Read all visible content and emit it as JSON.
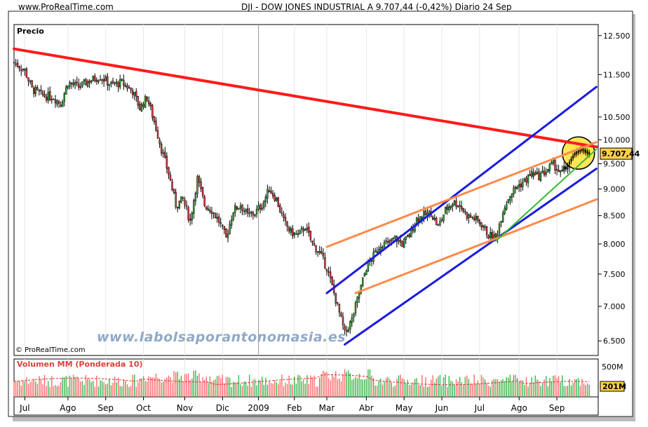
{
  "header": {
    "brand": "www.ProRealTime.com",
    "symbol_title": "DJI - DOW JONES INDUSTRIAL A   9.707,44 (-0,42%)   Diario  24 Sep"
  },
  "watermark": "www.labolsaporantonomasia.es",
  "copyright": "© ProRealTime.com",
  "colors": {
    "trend_red": "#ff1a1a",
    "channel_blue": "#1a1adf",
    "channel_orange": "#ff8a4a",
    "support_green": "#33bb33",
    "highlight_yellow": "#ffe23a",
    "candle_up": "#2fae2f",
    "candle_down": "#e03a3a",
    "volume_up": "#3ab54a",
    "volume_down": "#ff6a6a",
    "volume_ma": "#d03030"
  },
  "chart_data": {
    "type": "candlestick",
    "price_panel": {
      "label": "Precio",
      "y_ticks": [
        "12.500",
        "11.500",
        "10.500",
        "10.000",
        "9.500",
        "9.000",
        "8.500",
        "8.000",
        "7.500",
        "7.000",
        "6.500"
      ],
      "y_tick_values": [
        12500,
        11500,
        10500,
        10000,
        9500,
        9000,
        8500,
        8000,
        7500,
        7000,
        6500
      ],
      "y_scale": "log",
      "ylim": [
        6300,
        12800
      ],
      "last_value_label": "9.707,44",
      "last_value": 9707.44,
      "x_index_range": [
        0,
        320
      ],
      "close_series": [
        {
          "x": 0,
          "y": 11800
        },
        {
          "x": 6,
          "y": 11600
        },
        {
          "x": 10,
          "y": 11150
        },
        {
          "x": 16,
          "y": 11000
        },
        {
          "x": 22,
          "y": 10950
        },
        {
          "x": 26,
          "y": 10800
        },
        {
          "x": 30,
          "y": 11300
        },
        {
          "x": 36,
          "y": 11200
        },
        {
          "x": 42,
          "y": 11350
        },
        {
          "x": 48,
          "y": 11450
        },
        {
          "x": 54,
          "y": 11250
        },
        {
          "x": 60,
          "y": 11300
        },
        {
          "x": 66,
          "y": 11100
        },
        {
          "x": 70,
          "y": 10700
        },
        {
          "x": 74,
          "y": 10950
        },
        {
          "x": 78,
          "y": 10400
        },
        {
          "x": 82,
          "y": 9800
        },
        {
          "x": 86,
          "y": 9300
        },
        {
          "x": 90,
          "y": 8700
        },
        {
          "x": 94,
          "y": 8800
        },
        {
          "x": 98,
          "y": 8400
        },
        {
          "x": 102,
          "y": 9200
        },
        {
          "x": 106,
          "y": 8700
        },
        {
          "x": 110,
          "y": 8600
        },
        {
          "x": 114,
          "y": 8400
        },
        {
          "x": 118,
          "y": 8100
        },
        {
          "x": 122,
          "y": 8600
        },
        {
          "x": 126,
          "y": 8700
        },
        {
          "x": 130,
          "y": 8500
        },
        {
          "x": 134,
          "y": 8550
        },
        {
          "x": 138,
          "y": 8700
        },
        {
          "x": 142,
          "y": 9000
        },
        {
          "x": 146,
          "y": 8800
        },
        {
          "x": 150,
          "y": 8400
        },
        {
          "x": 154,
          "y": 8200
        },
        {
          "x": 158,
          "y": 8150
        },
        {
          "x": 162,
          "y": 8300
        },
        {
          "x": 166,
          "y": 8000
        },
        {
          "x": 170,
          "y": 7850
        },
        {
          "x": 174,
          "y": 7600
        },
        {
          "x": 178,
          "y": 7200
        },
        {
          "x": 182,
          "y": 6800
        },
        {
          "x": 184,
          "y": 6600
        },
        {
          "x": 188,
          "y": 6800
        },
        {
          "x": 192,
          "y": 7200
        },
        {
          "x": 196,
          "y": 7600
        },
        {
          "x": 200,
          "y": 7800
        },
        {
          "x": 204,
          "y": 8000
        },
        {
          "x": 208,
          "y": 8000
        },
        {
          "x": 212,
          "y": 8100
        },
        {
          "x": 216,
          "y": 8000
        },
        {
          "x": 220,
          "y": 8150
        },
        {
          "x": 224,
          "y": 8450
        },
        {
          "x": 228,
          "y": 8500
        },
        {
          "x": 232,
          "y": 8550
        },
        {
          "x": 236,
          "y": 8300
        },
        {
          "x": 240,
          "y": 8600
        },
        {
          "x": 244,
          "y": 8750
        },
        {
          "x": 248,
          "y": 8700
        },
        {
          "x": 252,
          "y": 8500
        },
        {
          "x": 256,
          "y": 8450
        },
        {
          "x": 260,
          "y": 8350
        },
        {
          "x": 264,
          "y": 8150
        },
        {
          "x": 268,
          "y": 8100
        },
        {
          "x": 272,
          "y": 8600
        },
        {
          "x": 276,
          "y": 8900
        },
        {
          "x": 280,
          "y": 9050
        },
        {
          "x": 284,
          "y": 9150
        },
        {
          "x": 288,
          "y": 9300
        },
        {
          "x": 292,
          "y": 9250
        },
        {
          "x": 296,
          "y": 9350
        },
        {
          "x": 300,
          "y": 9500
        },
        {
          "x": 304,
          "y": 9300
        },
        {
          "x": 308,
          "y": 9450
        },
        {
          "x": 312,
          "y": 9700
        },
        {
          "x": 316,
          "y": 9800
        },
        {
          "x": 320,
          "y": 9707
        }
      ],
      "trendlines": [
        {
          "name": "",
          "color": "trend_red",
          "from": {
            "x": 0,
            "y": 12150
          },
          "to": {
            "x": 324,
            "y": 9850
          }
        },
        {
          "name": "",
          "color": "channel_blue",
          "from": {
            "x": 174,
            "y": 7200
          },
          "to": {
            "x": 324,
            "y": 11200
          }
        },
        {
          "name": "",
          "color": "channel_blue",
          "from": {
            "x": 184,
            "y": 6450
          },
          "to": {
            "x": 324,
            "y": 9400
          }
        },
        {
          "name": "",
          "color": "channel_orange",
          "from": {
            "x": 174,
            "y": 7950
          },
          "to": {
            "x": 324,
            "y": 9950
          }
        },
        {
          "name": "",
          "color": "channel_orange",
          "from": {
            "x": 190,
            "y": 7200
          },
          "to": {
            "x": 324,
            "y": 8800
          }
        },
        {
          "name": "",
          "color": "support_green",
          "from": {
            "x": 268,
            "y": 8050
          },
          "to": {
            "x": 324,
            "y": 9800
          }
        }
      ],
      "highlight_circle": {
        "x": 314,
        "y": 9720
      }
    },
    "volume_panel": {
      "label": "Volumen MM (Ponderada 10)",
      "y_ticks": [
        "500M"
      ],
      "last_value_label": "201M"
    },
    "x_tick_labels": [
      "Jul",
      "Ago",
      "Sep",
      "Oct",
      "Nov",
      "Dic",
      "2009",
      "Feb",
      "Mar",
      "Abr",
      "May",
      "Jun",
      "Jul",
      "Ago",
      "Sep"
    ],
    "x_tick_index": [
      6,
      30,
      51,
      72,
      95,
      116,
      136,
      156,
      174,
      196,
      217,
      238,
      259,
      281,
      302
    ]
  }
}
